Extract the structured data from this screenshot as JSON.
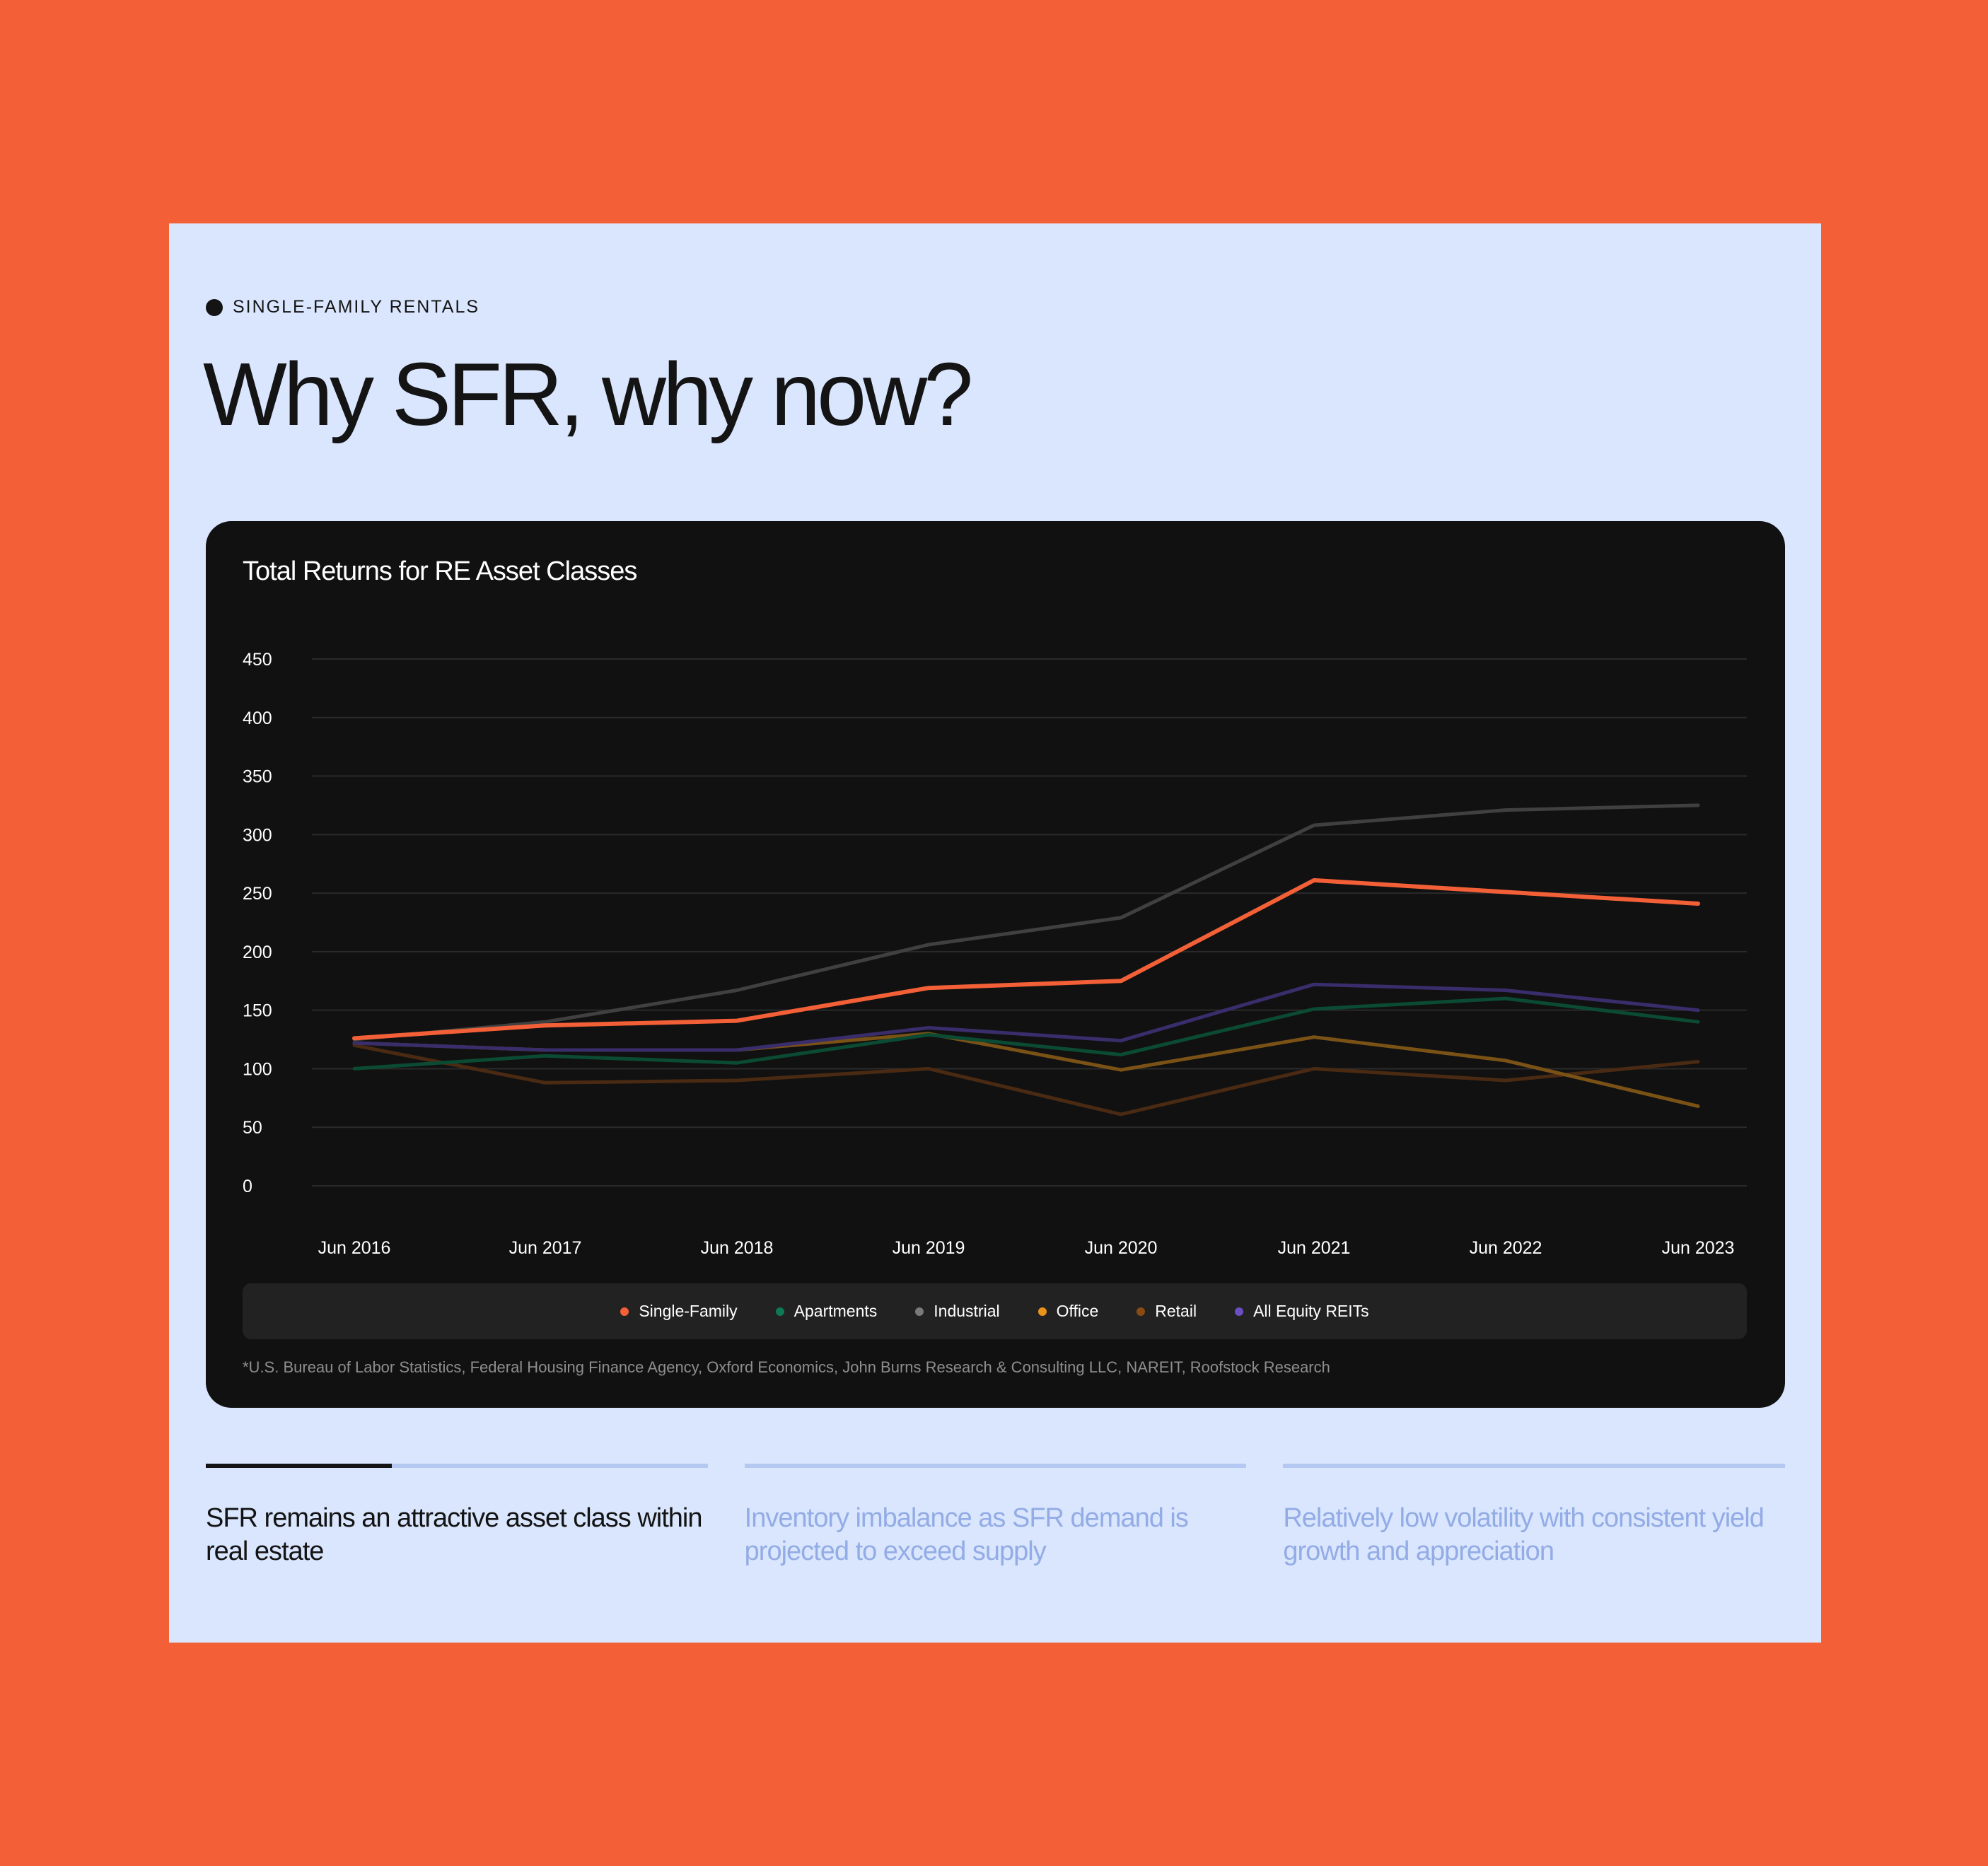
{
  "eyebrow": "SINGLE-FAMILY RENTALS",
  "headline": "Why SFR, why now?",
  "chart_data": {
    "type": "line",
    "title": "Total Returns for RE Asset Classes",
    "xlabel": "",
    "ylabel": "",
    "categories": [
      "Jun 2016",
      "Jun 2017",
      "Jun 2018",
      "Jun 2019",
      "Jun 2020",
      "Jun 2021",
      "Jun 2022",
      "Jun 2023"
    ],
    "yticks": [
      0,
      50,
      100,
      150,
      200,
      250,
      300,
      350,
      400,
      450
    ],
    "ylim": [
      0,
      450
    ],
    "grid": true,
    "legend_position": "bottom",
    "series": [
      {
        "name": "Industrial",
        "color": "#404040",
        "values": [
          125,
          140,
          167,
          206,
          229,
          308,
          321,
          325
        ]
      },
      {
        "name": "Retail",
        "color": "#4A2A12",
        "values": [
          120,
          88,
          90,
          100,
          61,
          100,
          90,
          106
        ]
      },
      {
        "name": "Office",
        "color": "#7A5216",
        "values": [
          122,
          116,
          116,
          130,
          99,
          127,
          107,
          68
        ]
      },
      {
        "name": "Apartments",
        "color": "#0B4A33",
        "values": [
          100,
          111,
          105,
          129,
          112,
          151,
          160,
          140
        ]
      },
      {
        "name": "All Equity REITs",
        "color": "#3A2D6B",
        "values": [
          122,
          116,
          116,
          135,
          124,
          172,
          167,
          150
        ]
      },
      {
        "name": "Single-Family",
        "color": "#F36037",
        "values": [
          126,
          137,
          141,
          169,
          175,
          261,
          251,
          241
        ]
      }
    ],
    "legend": [
      {
        "name": "Single-Family",
        "color": "#F36037"
      },
      {
        "name": "Apartments",
        "color": "#0E7A53"
      },
      {
        "name": "Industrial",
        "color": "#7A7A7A"
      },
      {
        "name": "Office",
        "color": "#E8941A"
      },
      {
        "name": "Retail",
        "color": "#8A4A14"
      },
      {
        "name": "All Equity REITs",
        "color": "#6A4FC4"
      }
    ],
    "source": "*U.S. Bureau of Labor Statistics, Federal Housing Finance Agency, Oxford Economics, John Burns Research & Consulting LLC, NAREIT, Roofstock Research"
  },
  "features": [
    {
      "text": "SFR remains an attractive asset class within real estate",
      "active": true,
      "progress": 0.37
    },
    {
      "text": "Inventory imbalance as SFR demand is projected to exceed supply",
      "active": false
    },
    {
      "text": "Relatively low volatility with consistent yield growth and appreciation",
      "active": false
    }
  ]
}
